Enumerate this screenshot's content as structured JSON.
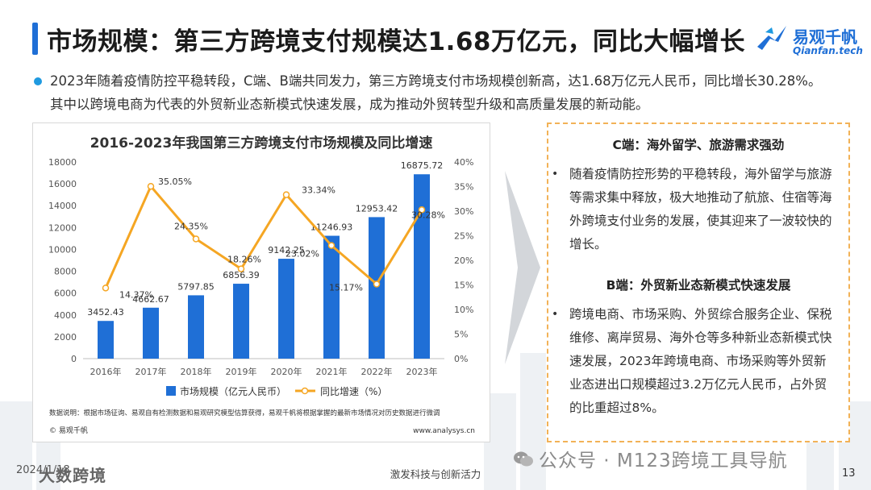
{
  "header": {
    "title": "市场规模：第三方跨境支付规模达1.68万亿元，同比大幅增长",
    "logo_name": "易观千帆",
    "logo_sub": "Qianfan.tech"
  },
  "intro": "2023年随着疫情防控平稳转段，C端、B端共同发力，第三方跨境支付市场规模创新高，达1.68万亿元人民币，同比增长30.28%。其中以跨境电商为代表的外贸新业态新模式快速发展，成为推动外贸转型升级和高质量发展的新动能。",
  "chart_data": {
    "type": "bar",
    "title": "2016-2023年我国第三方跨境支付市场规模及同比增速",
    "categories": [
      "2016年",
      "2017年",
      "2018年",
      "2019年",
      "2020年",
      "2021年",
      "2022年",
      "2023年"
    ],
    "series": [
      {
        "name": "市场规模（亿元人民币）",
        "type": "bar",
        "axis": "left",
        "color": "#1f6fd6",
        "values": [
          3452.43,
          4662.67,
          5797.85,
          6856.39,
          9142.25,
          11246.93,
          12953.42,
          16875.72
        ],
        "labels": [
          "3452.43",
          "4662.67",
          "5797.85",
          "6856.39",
          "9142.25",
          "11246.93",
          "12953.42",
          "16875.72"
        ]
      },
      {
        "name": "同比增速（%）",
        "type": "line",
        "axis": "right",
        "color": "#f5a623",
        "values": [
          14.37,
          35.05,
          24.35,
          18.26,
          33.34,
          23.02,
          15.17,
          30.28
        ],
        "labels": [
          "14.37%",
          "35.05%",
          "24.35%",
          "18.26%",
          "33.34%",
          "23.02%",
          "15.17%",
          "30.28%"
        ]
      }
    ],
    "y_left": {
      "ylim": [
        0,
        18000
      ],
      "ticks": [
        "0",
        "2000",
        "4000",
        "6000",
        "8000",
        "10000",
        "12000",
        "14000",
        "16000",
        "18000"
      ]
    },
    "y_right": {
      "ylim": [
        0,
        40
      ],
      "ticks": [
        "0%",
        "5%",
        "10%",
        "15%",
        "20%",
        "25%",
        "30%",
        "35%",
        "40%"
      ]
    },
    "grid": false,
    "legend": "bottom",
    "note": "数据说明：根据市场征询、易观自有检测数据和易观研究模型估算获得，易观千帆将根据掌握的最新市场情况对历史数据进行微调",
    "source": "© 易观千帆",
    "source_url": "www.analysys.cn"
  },
  "panel": {
    "c_title": "C端：海外留学、旅游需求强劲",
    "c_body": "随着疫情防控形势的平稳转段，海外留学与旅游等需求集中释放，极大地推动了航旅、住宿等海外跨境支付业务的发展，使其迎来了一波较快的增长。",
    "b_title": "B端：外贸新业态新模式快速发展",
    "b_body": "跨境电商、市场采购、外贸综合服务企业、保税维修、离岸贸易、海外仓等多种新业态新模式快速发展，2023年跨境电商、市场采购等外贸新业态进出口规模超过3.2万亿元人民币，占外贸的比重超过8%。",
    "bullet": "•"
  },
  "footer": {
    "date": "2024/1/18",
    "brand": "大数跨境",
    "center": "激发科技与创新活力",
    "wechat": "公众号 · M123跨境工具导航",
    "page": "13"
  },
  "colors": {
    "accent": "#1f6fd6",
    "line": "#f5a623",
    "panel_border": "#f2b257"
  }
}
